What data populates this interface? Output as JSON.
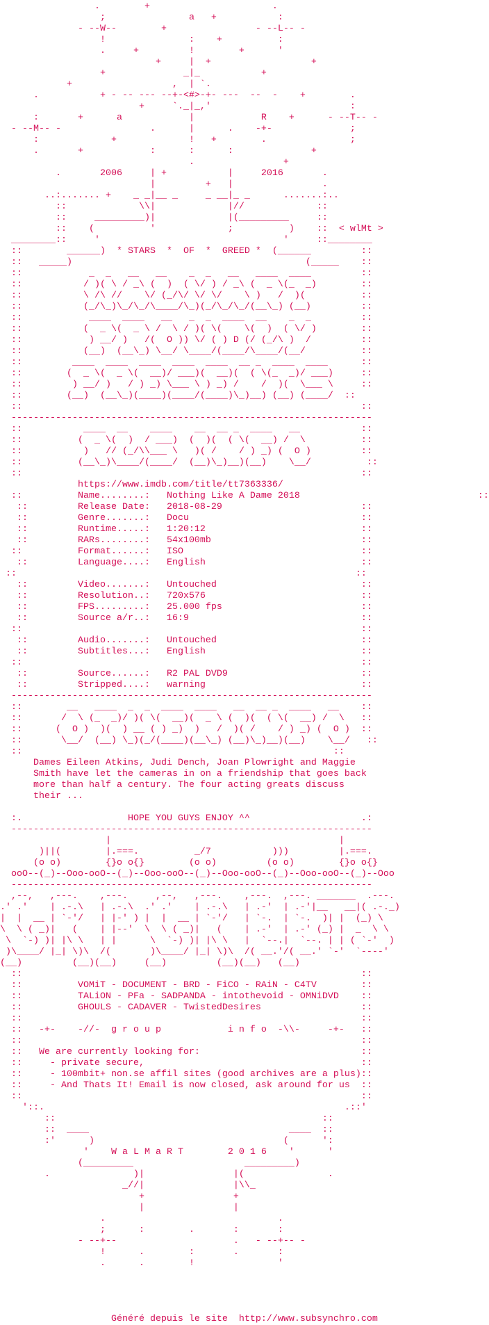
{
  "theme": {
    "text_color": "#d40f57",
    "background": "#ffffff"
  },
  "sections": [
    {
      "id": "header-art",
      "lines": [
        "                 .        +                      .",
        "                  ;               a   +           :",
        "              - --W--        +                - --L-- -",
        "                  !               :    +          :",
        "                  .     +         !        +      '",
        "                            +     |  +                  +",
        "                  +              _|_           +",
        "            +                  ,  | `.",
        "      .           + - -- --- --+-<#>-+- ---  --  -    +        .",
        "                         +     `._|_,'                         :",
        "      :       +      a            |            R    +      - --T-- -",
        "  - --M-- -                .      |      .    -+-              ;",
        "      :             +             !   +        .               ;",
        "      .       +            :      :      :              +",
        "                                  .                +",
        "          .       2006     | +           |     2016       .",
        "                           |         +   |                .",
        "        ..:....... +    _ _|__ _     _ __|_ _      .......:..",
        "          ::             \\\\|             |//             ::",
        "          ::     _________)|             |(_________     ::",
        "          ::    (          '             ;          )    ::  < wlMt >",
        "  ________::     '                                 '     ::________",
        "  ::        ______)  * STARS  *  OF  *  GREED *  (______         ::",
        "  ::   _____)                                          (_____    ::"
      ]
    },
    {
      "id": "title-art",
      "lines": [
        "  ::            _  _   __   __    _  _   __   ____  ____         ::",
        "  ::           / )( \\ / _\\ (  )  ( \\/ ) / _\\ (  _ \\(_  _)        ::",
        "  ::           \\ /\\ //    \\/ (_/\\/ \\/ \\/    \\ )   /  )(          ::",
        "  ::           (_/\\_)\\_/\\_/\\____/\\_)(_/\\_/\\_/(__\\_) (__)         ::",
        "  ::            ____  ____   __   _  _  ____  __    _  _         ::",
        "  ::           (  _ \\(  _ \\ /  \\ / )( \\(    \\(  )  ( \\/ )        ::",
        "  ::            ) __/ )   /(  O )) \\/ ( ) D (/ (_/\\ )  /         ::",
        "  ::           (__)  (__\\_) \\__/ \\____/(____/\\____/(__/          ::",
        "  ::         ____  ____  ____  ____  ____  __ _  ____  ____      ::",
        "  ::        (  _ \\(  _ \\(  __)/ ___)(  __)(  ( \\(_  _)/ ___)     ::",
        "  ::         ) __/ )   / ) _) \\___ \\ ) _) /    /  )(  \\___ \\     ::",
        "  ::        (__)  (__\\_)(____)(____/(____)\\_)__) (__) (____/  ::"
      ]
    },
    {
      "id": "release-info-banner",
      "lines": [
        "  ::                                                             ::",
        "  -----------------------------------------------------------------",
        "  ::           ____  __    ____    __  __ _  ____   __           ::",
        "  ::          (  _ \\(  )  / ___)  (  )(  ( \\(  __) /  \\          ::",
        "  ::           )   // (_/\\\\___ \\   )( /    / ) _) (  O )         ::",
        "  ::          (__\\_)\\____/(____/  (__)\\_)__)(__)    \\__/          ::",
        "  ::                                                             ::"
      ]
    },
    {
      "id": "imdb-link",
      "url": "https://www.imdb.com/title/tt7363336/"
    },
    {
      "id": "release-info",
      "lines": [
        "  ::          Name........:   Nothing Like A Dame 2018                                ::",
        "   ::         Release Date:   2018-08-29                         ::",
        "   ::         Genre.......:   Docu                               ::",
        "   ::         Runtime.....:   1:20:12                            ::",
        "   ::         RARs........:   54x100mb                           ::",
        "  ::          Format......:   ISO                                ::",
        "   ::         Language....:   English                            ::",
        " ::                                                             ::",
        "   ::         Video.......:   Untouched                          ::",
        "   ::         Resolution..:   720x576                            ::",
        "   ::         FPS.........:   25.000 fps                         ::",
        "   ::         Source a/r..:   16:9                               ::",
        "  ::                                                             ::",
        "   ::         Audio.......:   Untouched                          ::",
        "   ::         Subtitles...:   English                            ::",
        "  ::                                                             ::",
        "   ::         Source......:   R2 PAL DVD9                        ::",
        "   ::         Stripped....:   warning                            ::"
      ]
    },
    {
      "id": "other-info-banner",
      "lines": [
        "  -----------------------------------------------------------------",
        "  ::        __   ____  _  _  ____  ____   __  __ _  ____   __    ::",
        "  ::       /  \\ (_  _)/ )( \\(  __)(  _ \\ (  )(  ( \\(  __) /  \\   ::",
        "  ::      (  O )  )(  ) __ ( ) _)  )   /  )( /    / ) _) (  O )  ::",
        "  ::       \\__/  (__) \\_)(_/(____)(__\\_) (__)\\_)__)(__)    \\__/   ::",
        "  ::                                                        ::"
      ]
    },
    {
      "id": "plot",
      "lines": [
        "      Dames Eileen Atkins, Judi Dench, Joan Plowright and Maggie",
        "      Smith have let the cameras in on a friendship that goes back",
        "      more than half a century. The four acting greats discuss",
        "      their ..."
      ]
    },
    {
      "id": "hope-banner",
      "lines": [
        "  :.                   HOPE YOU GUYS ENJOY ^^                    .:",
        "  -----------------------------------------------------------------",
        "                   |                                         |",
        "       )||(        |.===.          _/7           )))         |.===.",
        "      (o o)        {}o o{}        (o o)         (o o)        {}o o{}",
        "  ooO--(_)--Ooo-ooO--(_)--Ooo-ooO--(_)--Ooo-ooO--(_)--Ooo-ooO--(_)--Ooo",
        "  -----------------------------------------------------------------"
      ]
    },
    {
      "id": "grp-greets-art",
      "lines": [
        "  ,--,   ,---.    ,---.     ,--,   ,---.    ,---.  ,---. _______  .---.",
        ".' .'    | .-.\\   | .-.\\  .' .'    | .-.\\   | .-'  | .-'|__   __|( .-._)",
        "|  |  __ | `-'/   | |-' ) |  |  __ | `-'/   | `-.  | `-.  )| |  (_) \\",
        "\\  \\ ( _)|   (    | |--'  \\  \\ ( _)|   (    | .-'  | .-' (_) |  _  \\ \\",
        " \\  `-) )| |\\ \\   | |      \\  `-) )| |\\ \\   |  `--.|  `--. | | ( `-'  )",
        " )\\____/ |_| \\)\\  /(       )\\____/ |_| \\)\\  /( __.'/( __.' `-'  `----'",
        "(__)         (__)(__)     (__)         (__)(__)   (__)"
      ]
    },
    {
      "id": "group-info",
      "lines": [
        "  ::                                                             ::",
        "  ::          VOMiT - DOCUMENT - BRD - FiCO - RAiN - C4TV        ::",
        "  ::          TALiON - PFa - SADPANDA - intothevoid - OMNiDVD    ::",
        "  ::          GHOULS - CADAVER - TwistedDesires                  ::",
        "  ::                                                             ::",
        "  ::   -+-    -//-  g r o u p            i n f o  -\\\\-     -+-   ::",
        "  ::                                                             ::",
        "  ::   We are currently looking for:                             ::",
        "  ::     - private secure,                                       ::",
        "  ::     - 100mbit+ non.se affil sites (good archives are a plus)::",
        "  ::     - And Thats It! Email is now closed, ask around for us  ::",
        "  ::                                                             ::"
      ]
    },
    {
      "id": "footer-art",
      "lines": [
        "    '::.                                                      .::'",
        "        ::                                                ::",
        "        ::  ____                                    ____  ::",
        "        :'      )                                  (      ':",
        "               '    W a L M a R T        2 0 1 6    '      '",
        "              (_________                    _________)",
        "        .               )|                |(               .",
        "                      _//|                |\\\\_",
        "                         +                +",
        "                         |                |",
        "                  .                               .",
        "                  ;      :        .       :       :",
        "              - --+--                     .   - --+-- -",
        "                  !      .        :       .       :",
        "                  .      .        !               '"
      ]
    }
  ],
  "footer": {
    "text": "Généré depuis le site",
    "link": "http://www.subsynchro.com"
  }
}
